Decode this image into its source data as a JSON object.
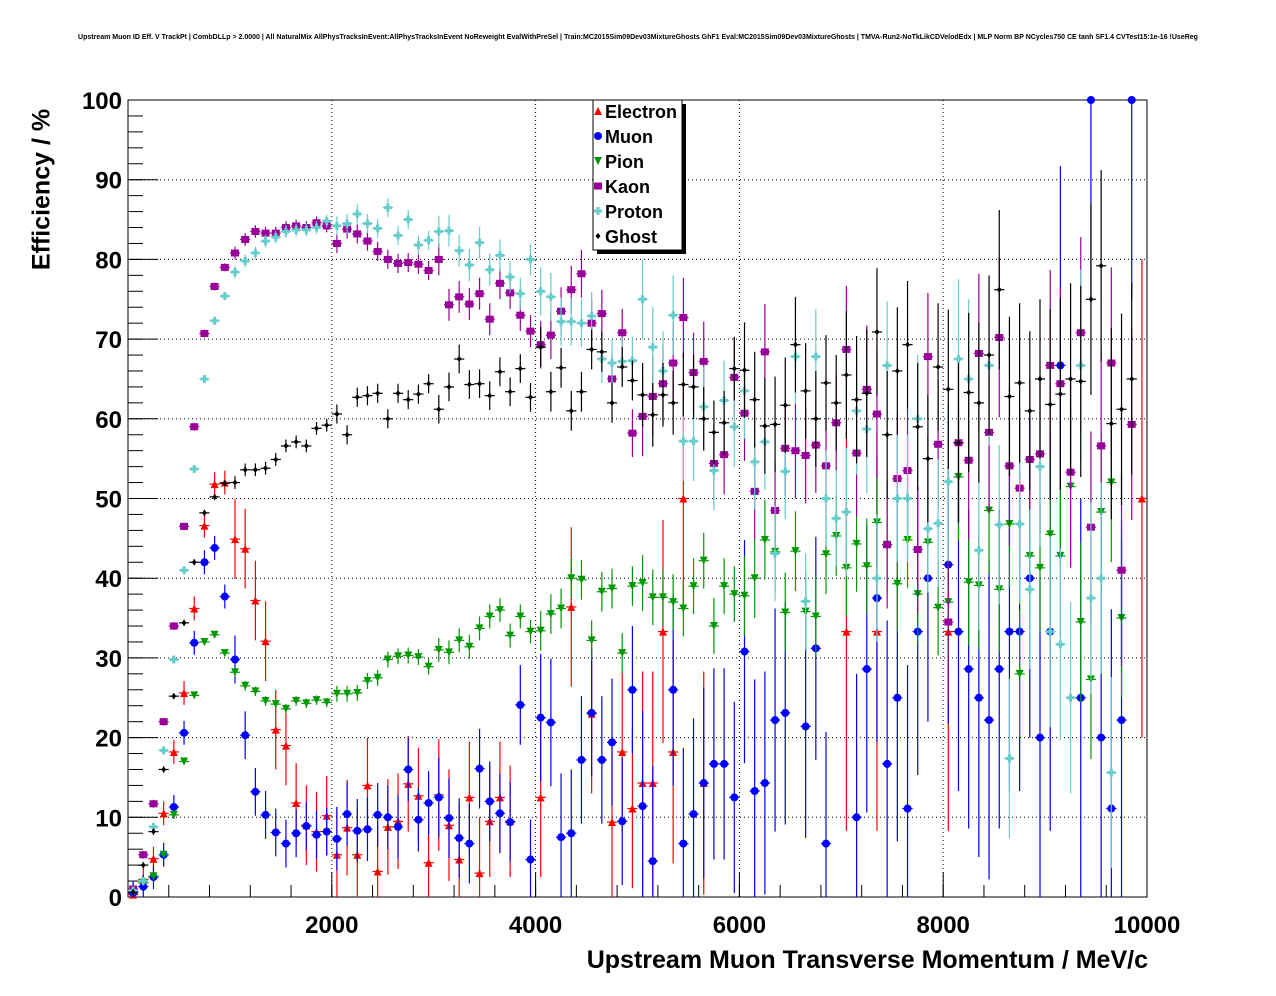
{
  "chart_data": {
    "type": "scatter",
    "title": "Upstream Muon ID Eff. V TrackPt | CombDLLp > 2.0000 | All NaturalMix AllPhysTracksInEvent:AllPhysTracksInEvent NoReweight EvalWithPreSel | Train:MC2015Sim09Dev03MixtureGhosts GhF1 Eval:MC2015Sim09Dev03MixtureGhosts | TMVA-Run2-NoTkLikCDVelodEdx | MLP Norm BP NCycles750 CE tanh SF1.4 CVTest15:1e-16 !UseReg",
    "xlabel": "Upstream Muon Transverse Momentum / MeV/c",
    "ylabel": "Efficiency / %",
    "xlim": [
      0,
      10000
    ],
    "ylim": [
      0,
      100
    ],
    "xticks": [
      "2000",
      "4000",
      "6000",
      "8000",
      "10000"
    ],
    "yticks": [
      "0",
      "10",
      "20",
      "30",
      "40",
      "50",
      "60",
      "70",
      "80",
      "90",
      "100"
    ],
    "grid": true,
    "legend_position": "top-center",
    "bin_width": 100,
    "x_first_bin_center": 50,
    "series": [
      {
        "name": "Electron",
        "color": "#ff0000",
        "marker": "triangle-up",
        "values": [
          0.3,
          2.2,
          4.8,
          10.5,
          18.2,
          25.6,
          36.2,
          46.6,
          51.8,
          52,
          44.9,
          43.7,
          37.2,
          32.1,
          21,
          19,
          11.8,
          9,
          8.2,
          10.2,
          5.3,
          8.7,
          5.3,
          14,
          3.2,
          8.8,
          9.5,
          14.2,
          12.7,
          4.3,
          12.8,
          9,
          4.7,
          12.5,
          3,
          9.5,
          12.5,
          9.5,
          null,
          null,
          12.5,
          null,
          null,
          36.4,
          null,
          23,
          null,
          9.4,
          18.2,
          11.1,
          14.3,
          14.3,
          33.3,
          18.2,
          50,
          null,
          14.3,
          null,
          null,
          null,
          null,
          null,
          null,
          null,
          null,
          null,
          null,
          null,
          null,
          null,
          33.3,
          null,
          null,
          33.3,
          null,
          null,
          null,
          null,
          null,
          null,
          33.3,
          null,
          null,
          null,
          null,
          null,
          null,
          null,
          null,
          null,
          null,
          null,
          null,
          null,
          null,
          null,
          null,
          null,
          null,
          50
        ],
        "err_by_1000MeV": [
          1.5,
          5,
          6,
          7,
          10,
          14,
          20,
          25,
          25,
          30
        ]
      },
      {
        "name": "Muon",
        "color": "#0000ff",
        "marker": "circle",
        "values": [
          0.5,
          1.3,
          2.5,
          5.3,
          11.3,
          20.6,
          31.9,
          42,
          43.8,
          37.7,
          29.8,
          20.3,
          13.2,
          10.3,
          8.1,
          6.7,
          8,
          8.9,
          7.8,
          8.2,
          7.3,
          10.4,
          8.3,
          8.5,
          10.3,
          10,
          8.8,
          16,
          9.7,
          11.8,
          12.5,
          9.9,
          7.4,
          6.7,
          16.1,
          12,
          10.5,
          9.4,
          24.1,
          4.7,
          22.5,
          21.9,
          7.5,
          8,
          17.2,
          23.1,
          17.2,
          19.4,
          9.5,
          26,
          11.4,
          4.5,
          null,
          26,
          6.7,
          10.4,
          14.3,
          16.7,
          16.7,
          12.5,
          30.8,
          13.3,
          14.3,
          22.2,
          23.1,
          null,
          21.4,
          31.2,
          6.7,
          null,
          null,
          10,
          28.6,
          37.5,
          16.7,
          25,
          11.1,
          33.3,
          40,
          null,
          41.7,
          33.3,
          28.6,
          25,
          22.2,
          28.6,
          33.3,
          33.3,
          40,
          20,
          33.3,
          66.7,
          null,
          25,
          100,
          20,
          11.1,
          22.2,
          100,
          null
        ],
        "err_by_1000MeV": [
          1.5,
          3,
          4,
          5,
          8,
          12,
          14,
          18,
          20,
          25
        ]
      },
      {
        "name": "Pion",
        "color": "#009900",
        "marker": "triangle-down",
        "values": [
          0.6,
          1.8,
          2.6,
          5.3,
          10.3,
          17,
          25.3,
          32,
          32.9,
          30.6,
          28.2,
          26.5,
          25.8,
          24.6,
          24.2,
          23.6,
          24.6,
          24.3,
          24.7,
          24.4,
          25.5,
          25.5,
          25.6,
          27.1,
          27.5,
          29.8,
          30.2,
          30.3,
          30.1,
          28.9,
          31,
          30.7,
          32.2,
          31.4,
          33.7,
          35.2,
          36,
          32.8,
          35.2,
          33.3,
          33.4,
          35.5,
          36.2,
          40,
          39.8,
          32.2,
          38.3,
          38.7,
          30.6,
          39,
          39.4,
          37.6,
          37.6,
          37,
          36.2,
          39,
          42.2,
          34,
          39,
          38,
          37.8,
          40,
          44.8,
          43.3,
          35.7,
          43.4,
          35.8,
          35.2,
          43,
          45.3,
          41.3,
          44.3,
          41.5,
          47,
          44.2,
          39.3,
          44.8,
          38,
          44.5,
          36.3,
          37,
          52.7,
          39.5,
          39.1,
          48.5,
          38.6,
          46.8,
          28,
          42.8,
          41.3,
          45.5,
          42.8,
          51.5,
          34.5,
          27.3,
          48.3,
          52,
          35,
          null,
          null
        ],
        "err_by_1000MeV": [
          0.4,
          0.6,
          1,
          1.5,
          2.5,
          3.5,
          5,
          6,
          8,
          10
        ]
      },
      {
        "name": "Kaon",
        "color": "#990099",
        "marker": "square",
        "values": [
          1,
          5.3,
          11.7,
          22,
          34,
          46.5,
          59,
          70.7,
          76.6,
          79,
          80.8,
          82.5,
          83.5,
          83.3,
          83.3,
          84,
          84.2,
          84,
          84.6,
          84.2,
          82,
          83.8,
          83.2,
          82.3,
          81,
          80,
          79.5,
          79.6,
          79.4,
          78.6,
          80,
          74.3,
          75.3,
          74.4,
          75.7,
          72.5,
          77,
          75.8,
          73,
          71,
          69.3,
          70.5,
          73.5,
          76.2,
          78.2,
          72,
          73.2,
          65,
          70.8,
          58.2,
          60.3,
          62.8,
          64.4,
          67,
          72.7,
          65.8,
          67.2,
          54.4,
          55.5,
          65.2,
          60.7,
          50.9,
          68.4,
          48.5,
          56.3,
          56,
          55.4,
          56.7,
          54.1,
          59.5,
          68.7,
          55.7,
          63.7,
          60.6,
          44.2,
          52.5,
          53.5,
          43.6,
          67.8,
          56.8,
          34.5,
          57,
          54.8,
          68.2,
          58.3,
          70.2,
          54.1,
          51.3,
          54.9,
          55.6,
          66.7,
          64.4,
          53.3,
          70.8,
          46.4,
          56.6,
          67,
          41,
          59.3,
          null
        ],
        "err_by_1000MeV": [
          0.5,
          0.8,
          1.2,
          2,
          3,
          5,
          6,
          8,
          10,
          12
        ]
      },
      {
        "name": "Proton",
        "color": "#66cccc",
        "marker": "cross",
        "values": [
          0.8,
          2,
          8.8,
          18.4,
          29.8,
          41,
          53.7,
          65,
          72.3,
          75.4,
          78.4,
          79.8,
          80.8,
          82.3,
          82.8,
          83.5,
          83.7,
          83.7,
          84,
          84.8,
          84.2,
          84.5,
          85.7,
          84.5,
          83.9,
          86.5,
          83,
          85,
          81.8,
          82.4,
          83.5,
          83.6,
          81.1,
          79.3,
          82.1,
          78.7,
          80.5,
          77.8,
          75.7,
          80,
          76,
          75.3,
          72.2,
          72.2,
          72,
          72.9,
          67.5,
          67,
          67.2,
          67.3,
          75,
          69,
          66,
          73,
          57.2,
          57.2,
          61.5,
          53.5,
          62.3,
          59,
          63.5,
          54.6,
          57.1,
          43.1,
          53.4,
          67.8,
          37.1,
          67.8,
          50,
          47.5,
          48.3,
          61,
          58.7,
          40,
          66.7,
          50,
          50,
          60,
          46.2,
          46.9,
          52.1,
          67.5,
          65,
          43.5,
          66.7,
          46.7,
          17.4,
          46.8,
          38.6,
          54,
          33.3,
          31.7,
          25,
          66.7,
          37.5,
          40,
          15.6,
          null,
          null,
          null
        ],
        "err_by_1000MeV": [
          0.5,
          0.8,
          1.2,
          2,
          3,
          5,
          6,
          8,
          10,
          12
        ]
      },
      {
        "name": "Ghost",
        "color": "#000000",
        "marker": "diamond",
        "values": [
          0.6,
          4,
          8.2,
          16,
          25.2,
          34.4,
          42,
          48.2,
          50.2,
          51.9,
          52,
          53.6,
          53.6,
          53.8,
          54.9,
          56.6,
          57.1,
          56.6,
          58.8,
          59.2,
          60.6,
          58,
          62.7,
          62.9,
          63.2,
          60,
          63.2,
          62.4,
          63.1,
          64.4,
          61.2,
          64,
          67.5,
          64.3,
          64.4,
          62.9,
          65.9,
          63.4,
          66.3,
          62.7,
          69,
          63.4,
          66.4,
          61,
          63.4,
          68.7,
          68.4,
          62,
          66.5,
          64.8,
          63,
          60.5,
          63,
          62,
          64.3,
          64,
          60,
          58.3,
          59.5,
          66.3,
          66.1,
          62.4,
          59.1,
          59.3,
          61.7,
          69.3,
          63.5,
          60,
          64.5,
          62,
          65.5,
          62.4,
          63.2,
          70.9,
          58,
          66,
          69.3,
          59,
          55,
          66.5,
          63.7,
          57,
          63.3,
          62,
          68,
          76.2,
          62.8,
          64.5,
          61,
          65,
          61.8,
          63.1,
          65,
          64.7,
          75,
          79.2,
          59.4,
          61.2,
          65,
          null
        ],
        "err_by_1000MeV": [
          0.4,
          0.8,
          1.2,
          1.8,
          2.5,
          4,
          6,
          8,
          10,
          12
        ]
      }
    ]
  }
}
